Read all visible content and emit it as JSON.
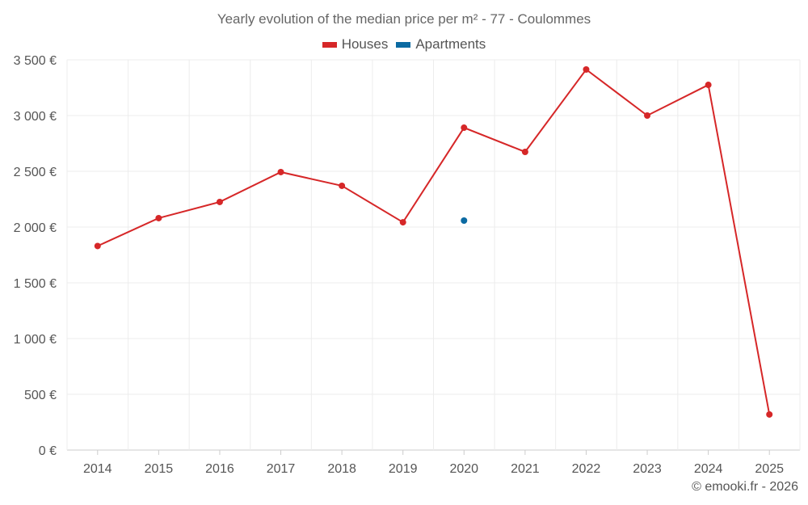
{
  "chart_data": {
    "type": "line",
    "title": "Yearly evolution of the median price per m² - 77 - Coulommes",
    "categories": [
      "2014",
      "2015",
      "2016",
      "2017",
      "2018",
      "2019",
      "2020",
      "2021",
      "2022",
      "2023",
      "2024",
      "2025"
    ],
    "series": [
      {
        "name": "Houses",
        "color": "#d62728",
        "values": [
          1830,
          2080,
          2225,
          2493,
          2370,
          2043,
          2891,
          2674,
          3413,
          3000,
          3275,
          319
        ]
      },
      {
        "name": "Apartments",
        "color": "#0b6aa2",
        "values": [
          null,
          null,
          null,
          null,
          null,
          null,
          2058,
          null,
          null,
          null,
          null,
          null
        ]
      }
    ],
    "ylim": [
      0,
      3500
    ],
    "yticks": [
      0,
      500,
      1000,
      1500,
      2000,
      2500,
      3000,
      3500
    ],
    "ytick_labels": [
      "0 €",
      "500 €",
      "1 000 €",
      "1 500 €",
      "2 000 €",
      "2 500 €",
      "3 000 €",
      "3 500 €"
    ],
    "grid": true,
    "legend_position": "top-center"
  },
  "credit": "© emooki.fr - 2026"
}
